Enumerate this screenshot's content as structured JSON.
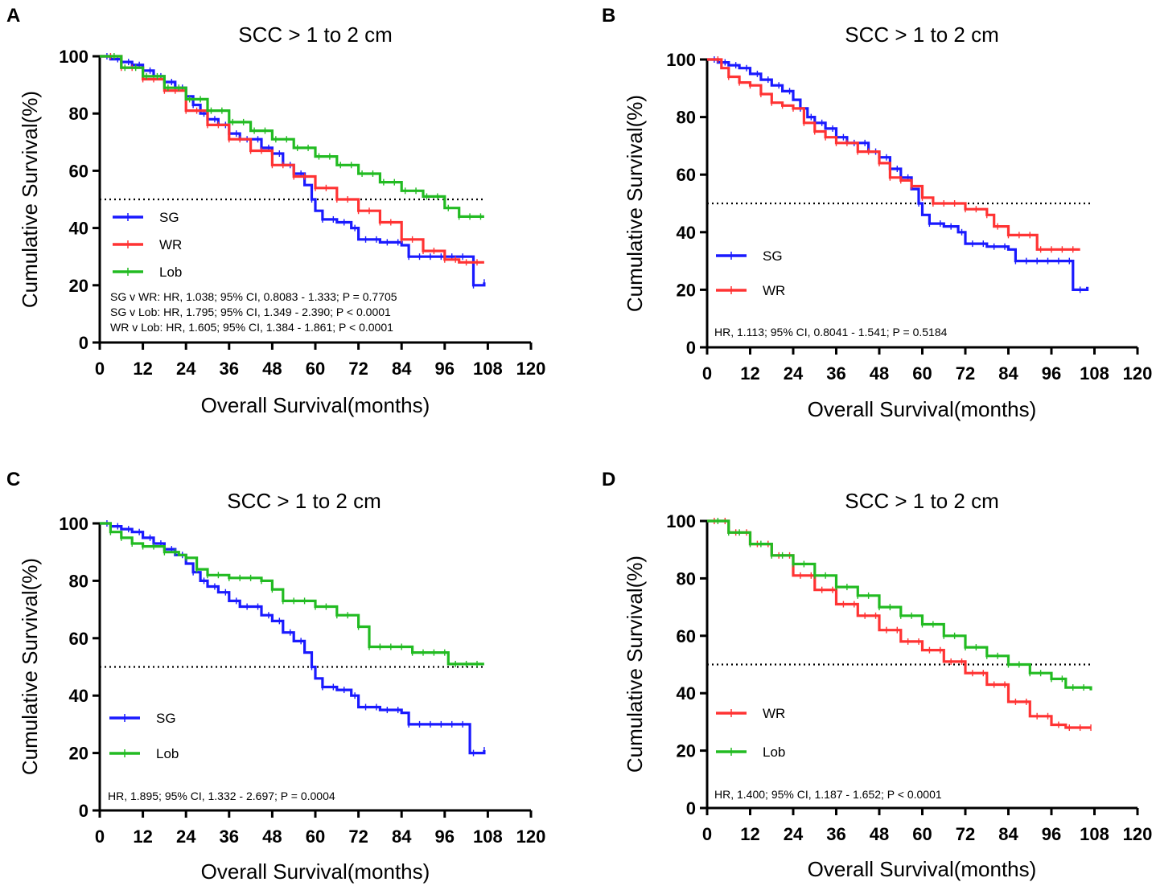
{
  "chart_data": [
    {
      "panel": "A",
      "type": "line",
      "subtype": "kaplan-meier",
      "title": "SCC > 1 to 2 cm",
      "xlabel": "Overall Survival(months)",
      "ylabel": "Cumulative Survival(%)",
      "xlim": [
        0,
        120
      ],
      "ylim": [
        0,
        100
      ],
      "xticks": [
        "0",
        "12",
        "24",
        "36",
        "48",
        "60",
        "72",
        "84",
        "96",
        "108",
        "120"
      ],
      "yticks": [
        "0",
        "20",
        "40",
        "60",
        "80",
        "100"
      ],
      "reference_line": 50,
      "legend_position": "bottom-left",
      "series": [
        {
          "name": "SG",
          "color": "#1a1aff",
          "points": [
            [
              0,
              100
            ],
            [
              3,
              99
            ],
            [
              6,
              98
            ],
            [
              9,
              97
            ],
            [
              12,
              95
            ],
            [
              15,
              93
            ],
            [
              18,
              91
            ],
            [
              21,
              89
            ],
            [
              24,
              86
            ],
            [
              26,
              83
            ],
            [
              28,
              80
            ],
            [
              30,
              78
            ],
            [
              33,
              76
            ],
            [
              36,
              73
            ],
            [
              39,
              71
            ],
            [
              42,
              71
            ],
            [
              45,
              68
            ],
            [
              48,
              66
            ],
            [
              51,
              62
            ],
            [
              54,
              59
            ],
            [
              57,
              55
            ],
            [
              59,
              50
            ],
            [
              60,
              46
            ],
            [
              62,
              43
            ],
            [
              66,
              42
            ],
            [
              70,
              40
            ],
            [
              72,
              36
            ],
            [
              78,
              35
            ],
            [
              84,
              34
            ],
            [
              86,
              30
            ],
            [
              96,
              30
            ],
            [
              104,
              30
            ],
            [
              104,
              20
            ],
            [
              107,
              21
            ]
          ]
        },
        {
          "name": "WR",
          "color": "#ff3333",
          "points": [
            [
              0,
              100
            ],
            [
              6,
              96
            ],
            [
              12,
              92
            ],
            [
              18,
              88
            ],
            [
              24,
              81
            ],
            [
              30,
              76
            ],
            [
              36,
              71
            ],
            [
              42,
              67
            ],
            [
              48,
              62
            ],
            [
              54,
              58
            ],
            [
              60,
              54
            ],
            [
              66,
              50
            ],
            [
              72,
              46
            ],
            [
              78,
              42
            ],
            [
              84,
              36
            ],
            [
              90,
              32
            ],
            [
              96,
              29
            ],
            [
              100,
              28
            ],
            [
              107,
              28
            ]
          ]
        },
        {
          "name": "Lob",
          "color": "#22bb22",
          "points": [
            [
              0,
              100
            ],
            [
              6,
              96
            ],
            [
              12,
              93
            ],
            [
              18,
              89
            ],
            [
              24,
              85
            ],
            [
              30,
              81
            ],
            [
              36,
              77
            ],
            [
              42,
              74
            ],
            [
              48,
              71
            ],
            [
              54,
              68
            ],
            [
              60,
              65
            ],
            [
              66,
              62
            ],
            [
              72,
              59
            ],
            [
              78,
              56
            ],
            [
              84,
              53
            ],
            [
              90,
              51
            ],
            [
              96,
              47
            ],
            [
              100,
              44
            ],
            [
              107,
              44
            ]
          ]
        }
      ],
      "annotations": [
        "SG v WR: HR, 1.038; 95% CI, 0.8083  - 1.333; P = 0.7705",
        "SG v Lob: HR, 1.795; 95% CI, 1.349  - 2.390; P < 0.0001",
        "WR v Lob: HR, 1.605; 95% CI, 1.384  - 1.861; P < 0.0001"
      ]
    },
    {
      "panel": "B",
      "type": "line",
      "subtype": "kaplan-meier",
      "title": "SCC > 1 to 2 cm",
      "xlabel": "Overall Survival(months)",
      "ylabel": "Cumulative Survival(%)",
      "xlim": [
        0,
        120
      ],
      "ylim": [
        0,
        100
      ],
      "xticks": [
        "0",
        "12",
        "24",
        "36",
        "48",
        "60",
        "72",
        "84",
        "96",
        "108",
        "120"
      ],
      "yticks": [
        "0",
        "20",
        "40",
        "60",
        "80",
        "100"
      ],
      "reference_line": 50,
      "legend_position": "bottom-left",
      "series": [
        {
          "name": "SG",
          "color": "#1a1aff",
          "points": [
            [
              0,
              100
            ],
            [
              3,
              99
            ],
            [
              6,
              98
            ],
            [
              9,
              97
            ],
            [
              12,
              95
            ],
            [
              15,
              93
            ],
            [
              18,
              91
            ],
            [
              21,
              89
            ],
            [
              24,
              86
            ],
            [
              26,
              83
            ],
            [
              28,
              80
            ],
            [
              30,
              78
            ],
            [
              33,
              76
            ],
            [
              36,
              73
            ],
            [
              39,
              71
            ],
            [
              42,
              71
            ],
            [
              45,
              68
            ],
            [
              48,
              66
            ],
            [
              51,
              62
            ],
            [
              54,
              59
            ],
            [
              57,
              55
            ],
            [
              59,
              50
            ],
            [
              60,
              46
            ],
            [
              62,
              43
            ],
            [
              66,
              42
            ],
            [
              70,
              40
            ],
            [
              72,
              36
            ],
            [
              78,
              35
            ],
            [
              84,
              34
            ],
            [
              86,
              30
            ],
            [
              96,
              30
            ],
            [
              102,
              30
            ],
            [
              102,
              20
            ],
            [
              106,
              21
            ]
          ]
        },
        {
          "name": "WR",
          "color": "#ff3333",
          "points": [
            [
              0,
              100
            ],
            [
              4,
              97
            ],
            [
              6,
              94
            ],
            [
              9,
              92
            ],
            [
              12,
              91
            ],
            [
              15,
              88
            ],
            [
              18,
              85
            ],
            [
              21,
              84
            ],
            [
              24,
              83
            ],
            [
              27,
              78
            ],
            [
              30,
              75
            ],
            [
              33,
              73
            ],
            [
              36,
              71
            ],
            [
              42,
              68
            ],
            [
              48,
              64
            ],
            [
              51,
              59
            ],
            [
              54,
              58
            ],
            [
              57,
              56
            ],
            [
              60,
              52
            ],
            [
              63,
              50
            ],
            [
              69,
              50
            ],
            [
              72,
              48
            ],
            [
              78,
              46
            ],
            [
              80,
              42
            ],
            [
              84,
              39
            ],
            [
              90,
              39
            ],
            [
              92,
              34
            ],
            [
              104,
              34
            ]
          ]
        }
      ],
      "annotations": [
        "HR, 1.113; 95% CI, 0.8041  - 1.541; P = 0.5184"
      ]
    },
    {
      "panel": "C",
      "type": "line",
      "subtype": "kaplan-meier",
      "title": "SCC > 1 to 2 cm",
      "xlabel": "Overall Survival(months)",
      "ylabel": "Cumulative Survival(%)",
      "xlim": [
        0,
        120
      ],
      "ylim": [
        0,
        100
      ],
      "xticks": [
        "0",
        "12",
        "24",
        "36",
        "48",
        "60",
        "72",
        "84",
        "96",
        "108",
        "120"
      ],
      "yticks": [
        "0",
        "20",
        "40",
        "60",
        "80",
        "100"
      ],
      "reference_line": 50,
      "legend_position": "bottom-left",
      "series": [
        {
          "name": "SG",
          "color": "#1a1aff",
          "points": [
            [
              0,
              100
            ],
            [
              3,
              99
            ],
            [
              6,
              98
            ],
            [
              9,
              97
            ],
            [
              12,
              95
            ],
            [
              15,
              93
            ],
            [
              18,
              91
            ],
            [
              21,
              89
            ],
            [
              24,
              86
            ],
            [
              26,
              83
            ],
            [
              28,
              80
            ],
            [
              30,
              78
            ],
            [
              33,
              76
            ],
            [
              36,
              73
            ],
            [
              39,
              71
            ],
            [
              42,
              71
            ],
            [
              45,
              68
            ],
            [
              48,
              66
            ],
            [
              51,
              62
            ],
            [
              54,
              59
            ],
            [
              57,
              55
            ],
            [
              59,
              50
            ],
            [
              60,
              46
            ],
            [
              62,
              43
            ],
            [
              66,
              42
            ],
            [
              70,
              40
            ],
            [
              72,
              36
            ],
            [
              78,
              35
            ],
            [
              84,
              34
            ],
            [
              86,
              30
            ],
            [
              96,
              30
            ],
            [
              103,
              30
            ],
            [
              103,
              20
            ],
            [
              107,
              21
            ]
          ]
        },
        {
          "name": "Lob",
          "color": "#22bb22",
          "points": [
            [
              0,
              100
            ],
            [
              3,
              97
            ],
            [
              6,
              95
            ],
            [
              9,
              93
            ],
            [
              12,
              92
            ],
            [
              18,
              90
            ],
            [
              22,
              89
            ],
            [
              24,
              88
            ],
            [
              27,
              84
            ],
            [
              30,
              82
            ],
            [
              36,
              81
            ],
            [
              45,
              80
            ],
            [
              48,
              77
            ],
            [
              51,
              73
            ],
            [
              57,
              73
            ],
            [
              60,
              71
            ],
            [
              66,
              68
            ],
            [
              72,
              64
            ],
            [
              75,
              57
            ],
            [
              84,
              57
            ],
            [
              87,
              55
            ],
            [
              96,
              55
            ],
            [
              97,
              51
            ],
            [
              107,
              51
            ]
          ]
        }
      ],
      "annotations": [
        "HR, 1.895; 95% CI, 1.332  - 2.697; P = 0.0004"
      ]
    },
    {
      "panel": "D",
      "type": "line",
      "subtype": "kaplan-meier",
      "title": "SCC > 1 to 2 cm",
      "xlabel": "Overall Survival(months)",
      "ylabel": "Cumulative Survival(%)",
      "xlim": [
        0,
        120
      ],
      "ylim": [
        0,
        100
      ],
      "xticks": [
        "0",
        "12",
        "24",
        "36",
        "48",
        "60",
        "72",
        "84",
        "96",
        "108",
        "120"
      ],
      "yticks": [
        "0",
        "20",
        "40",
        "60",
        "80",
        "100"
      ],
      "reference_line": 50,
      "legend_position": "bottom-left",
      "series": [
        {
          "name": "WR",
          "color": "#ff3333",
          "points": [
            [
              0,
              100
            ],
            [
              6,
              96
            ],
            [
              12,
              92
            ],
            [
              18,
              88
            ],
            [
              24,
              81
            ],
            [
              30,
              76
            ],
            [
              36,
              71
            ],
            [
              42,
              67
            ],
            [
              48,
              62
            ],
            [
              54,
              58
            ],
            [
              60,
              55
            ],
            [
              66,
              51
            ],
            [
              72,
              47
            ],
            [
              78,
              43
            ],
            [
              84,
              37
            ],
            [
              90,
              32
            ],
            [
              96,
              29
            ],
            [
              100,
              28
            ],
            [
              107,
              28
            ]
          ]
        },
        {
          "name": "Lob",
          "color": "#22bb22",
          "points": [
            [
              0,
              100
            ],
            [
              6,
              96
            ],
            [
              12,
              92
            ],
            [
              18,
              88
            ],
            [
              24,
              85
            ],
            [
              30,
              81
            ],
            [
              36,
              77
            ],
            [
              42,
              74
            ],
            [
              48,
              70
            ],
            [
              54,
              67
            ],
            [
              60,
              64
            ],
            [
              66,
              60
            ],
            [
              72,
              56
            ],
            [
              78,
              53
            ],
            [
              84,
              50
            ],
            [
              90,
              47
            ],
            [
              96,
              45
            ],
            [
              100,
              42
            ],
            [
              107,
              41
            ]
          ]
        }
      ],
      "annotations": [
        "HR, 1.400; 95% CI, 1.187  -  1.652; P < 0.0001"
      ]
    }
  ]
}
